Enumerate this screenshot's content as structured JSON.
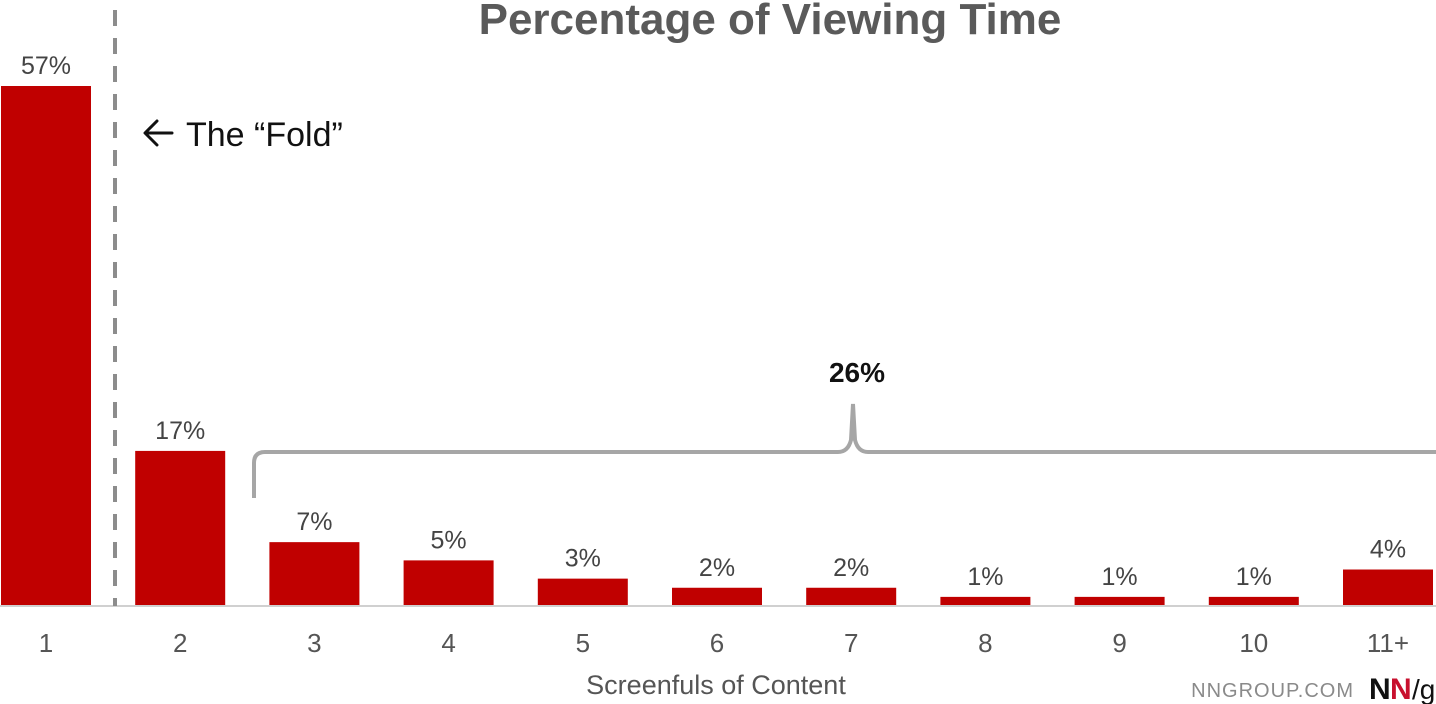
{
  "chart_data": {
    "type": "bar",
    "title": "Percentage of Viewing Time",
    "xlabel": "Screenfuls of Content",
    "ylabel": "",
    "categories": [
      "1",
      "2",
      "3",
      "4",
      "5",
      "6",
      "7",
      "8",
      "9",
      "10",
      "11+"
    ],
    "values": [
      57,
      17,
      7,
      5,
      3,
      2,
      2,
      1,
      1,
      1,
      4
    ],
    "value_labels": [
      "57%",
      "17%",
      "7%",
      "5%",
      "3%",
      "2%",
      "2%",
      "1%",
      "1%",
      "1%",
      "4%"
    ],
    "ylim": [
      0,
      57
    ],
    "grid": false,
    "bar_color": "#c00000",
    "annotations": {
      "fold_label": "The “Fold”",
      "fold_arrow_icon": "arrow-left-icon",
      "brace_label": "26%",
      "brace_span": [
        "3",
        "11+"
      ]
    }
  },
  "footer": {
    "site": "NNGROUP.COM",
    "logo": {
      "n1": "N",
      "n2": "N",
      "slash_g": "/g"
    }
  },
  "colors": {
    "bar": "#c00000",
    "fold_line": "#8c8c8c",
    "brace": "#a6a6a6",
    "axis": "#d0d0d0",
    "logo_red": "#c8102e"
  }
}
